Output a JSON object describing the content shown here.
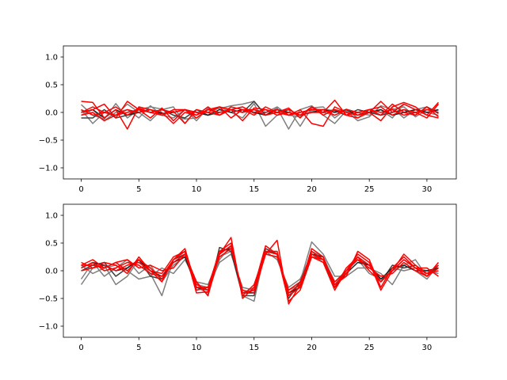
{
  "chart_data": [
    {
      "type": "line",
      "title": "",
      "xlabel": "",
      "ylabel": "",
      "xlim": [
        -1.55,
        32.55
      ],
      "ylim": [
        -1.2,
        1.2
      ],
      "xticks": [
        0,
        5,
        10,
        15,
        20,
        25,
        30
      ],
      "xtick_labels": [
        "0",
        "5",
        "10",
        "15",
        "20",
        "25",
        "30"
      ],
      "yticks": [
        -1.0,
        -0.5,
        0.0,
        0.5,
        1.0
      ],
      "ytick_labels": [
        "−1.0",
        "−0.5",
        "0.0",
        "0.5",
        "1.0"
      ],
      "grid": false,
      "x": [
        0,
        1,
        2,
        3,
        4,
        5,
        6,
        7,
        8,
        9,
        10,
        11,
        12,
        13,
        14,
        15,
        16,
        17,
        18,
        19,
        20,
        21,
        22,
        23,
        24,
        25,
        26,
        27,
        28,
        29,
        30,
        31
      ],
      "series": [
        {
          "color": "#7f7f7f",
          "values": [
            0.14,
            -0.05,
            -0.12,
            0.16,
            -0.1,
            0.05,
            0.1,
            0.06,
            -0.05,
            -0.12,
            -0.1,
            0.05,
            0.07,
            0.12,
            0.15,
            0.2,
            -0.05,
            0.08,
            -0.3,
            0.05,
            0.12,
            -0.05,
            -0.2,
            0.03,
            -0.15,
            -0.08,
            0.12,
            0.05,
            0.1,
            -0.08,
            0.05,
            0.04
          ]
        },
        {
          "color": "#7f7f7f",
          "values": [
            0.05,
            -0.2,
            0.0,
            -0.05,
            0.15,
            0.0,
            -0.15,
            0.05,
            0.1,
            -0.2,
            0.05,
            -0.05,
            0.1,
            0.0,
            -0.1,
            0.16,
            -0.25,
            -0.05,
            0.05,
            -0.25,
            0.08,
            0.1,
            -0.1,
            0.06,
            0.0,
            -0.05,
            0.05,
            -0.1,
            0.15,
            0.05,
            0.1,
            0.0
          ]
        },
        {
          "color": "#7f7f7f",
          "values": [
            -0.05,
            0.05,
            -0.15,
            0.0,
            0.05,
            -0.1,
            0.12,
            -0.05,
            -0.1,
            0.05,
            -0.15,
            0.08,
            -0.05,
            0.05,
            0.1,
            -0.02,
            0.0,
            0.1,
            -0.05,
            -0.08,
            0.03,
            0.0,
            -0.05,
            0.05,
            -0.1,
            0.05,
            -0.05,
            0.08,
            -0.1,
            0.05,
            0.0,
            -0.05
          ]
        },
        {
          "color": "#404040",
          "values": [
            -0.1,
            -0.1,
            0.05,
            -0.1,
            -0.05,
            0.05,
            0.0,
            0.05,
            -0.05,
            -0.1,
            0.05,
            -0.05,
            0.0,
            0.05,
            0.0,
            0.2,
            -0.05,
            0.05,
            -0.05,
            0.0,
            0.05,
            0.05,
            0.03,
            -0.05,
            0.05,
            0.0,
            -0.05,
            0.0,
            0.05,
            -0.05,
            0.1,
            -0.02
          ]
        },
        {
          "color": "#222222",
          "values": [
            0.0,
            0.05,
            -0.1,
            0.05,
            -0.05,
            0.0,
            0.05,
            -0.02,
            0.0,
            0.05,
            0.0,
            -0.05,
            0.05,
            0.0,
            0.05,
            0.0,
            -0.05,
            0.05,
            0.0,
            -0.05,
            0.0,
            0.05,
            0.0,
            0.05,
            -0.05,
            0.0,
            0.05,
            -0.05,
            0.0,
            0.05,
            0.0,
            0.05
          ]
        },
        {
          "color": "#ff0000",
          "values": [
            0.2,
            0.18,
            -0.1,
            0.05,
            -0.3,
            0.1,
            0.05,
            -0.05,
            0.02,
            -0.2,
            0.05,
            0.0,
            0.1,
            0.05,
            -0.15,
            0.08,
            0.05,
            -0.05,
            0.0,
            -0.05,
            0.1,
            0.0,
            0.22,
            -0.05,
            -0.1,
            0.0,
            0.2,
            0.0,
            0.15,
            0.05,
            -0.05,
            0.18
          ]
        },
        {
          "color": "#ff0000",
          "values": [
            0.0,
            0.05,
            0.15,
            -0.1,
            0.2,
            0.05,
            -0.1,
            0.08,
            -0.15,
            0.05,
            -0.05,
            0.1,
            -0.05,
            0.1,
            0.05,
            -0.05,
            0.1,
            0.0,
            0.08,
            -0.1,
            0.1,
            -0.05,
            0.05,
            0.0,
            -0.05,
            0.0,
            -0.15,
            0.1,
            0.18,
            0.1,
            -0.05,
            -0.1
          ]
        },
        {
          "color": "#ff0000",
          "values": [
            0.05,
            -0.05,
            0.0,
            0.1,
            -0.05,
            0.08,
            0.0,
            0.05,
            0.0,
            0.05,
            -0.1,
            0.05,
            0.0,
            0.05,
            0.1,
            0.0,
            0.05,
            0.0,
            -0.05,
            0.05,
            -0.2,
            -0.25,
            0.1,
            0.0,
            -0.05,
            0.05,
            -0.05,
            0.15,
            0.0,
            -0.05,
            0.1,
            -0.08
          ]
        },
        {
          "color": "#ff0000",
          "values": [
            -0.05,
            0.0,
            -0.15,
            -0.05,
            0.05,
            0.0,
            0.05,
            0.0,
            -0.2,
            0.0,
            -0.05,
            0.05,
            0.1,
            -0.1,
            0.05,
            0.05,
            0.0,
            0.05,
            -0.05,
            0.0,
            0.05,
            0.05,
            -0.05,
            0.05,
            0.0,
            0.05,
            0.1,
            -0.05,
            0.05,
            0.0,
            -0.1,
            0.15
          ]
        },
        {
          "color": "#ff0000",
          "values": [
            0.0,
            0.1,
            0.0,
            -0.05,
            0.0,
            0.05,
            0.0,
            -0.05,
            0.05,
            0.05,
            0.0,
            0.0,
            -0.05,
            0.05,
            0.0,
            0.05,
            -0.05,
            0.0,
            0.05,
            -0.05,
            0.0,
            0.0,
            0.05,
            -0.05,
            0.0,
            0.05,
            0.0,
            0.05,
            -0.05,
            0.0,
            0.05,
            0.0
          ]
        }
      ]
    },
    {
      "type": "line",
      "title": "",
      "xlabel": "",
      "ylabel": "",
      "xlim": [
        -1.55,
        32.55
      ],
      "ylim": [
        -1.2,
        1.2
      ],
      "xticks": [
        0,
        5,
        10,
        15,
        20,
        25,
        30
      ],
      "xtick_labels": [
        "0",
        "5",
        "10",
        "15",
        "20",
        "25",
        "30"
      ],
      "yticks": [
        -1.0,
        -0.5,
        0.0,
        0.5,
        1.0
      ],
      "ytick_labels": [
        "−1.0",
        "−0.5",
        "0.0",
        "0.5",
        "1.0"
      ],
      "grid": false,
      "x": [
        0,
        1,
        2,
        3,
        4,
        5,
        6,
        7,
        8,
        9,
        10,
        11,
        12,
        13,
        14,
        15,
        16,
        17,
        18,
        19,
        20,
        21,
        22,
        23,
        24,
        25,
        26,
        27,
        28,
        29,
        30,
        31
      ],
      "series": [
        {
          "color": "#7f7f7f",
          "values": [
            -0.25,
            0.05,
            0.1,
            -0.25,
            -0.1,
            0.2,
            -0.05,
            -0.45,
            0.2,
            0.3,
            -0.3,
            -0.4,
            0.2,
            0.45,
            -0.45,
            -0.55,
            0.4,
            0.3,
            -0.45,
            -0.2,
            0.52,
            0.3,
            -0.1,
            -0.1,
            0.05,
            0.05,
            -0.05,
            -0.25,
            0.1,
            0.2,
            -0.1,
            0.05
          ]
        },
        {
          "color": "#7f7f7f",
          "values": [
            -0.15,
            0.15,
            -0.1,
            0.05,
            0.2,
            -0.05,
            0.1,
            -0.2,
            0.1,
            0.25,
            -0.25,
            -0.3,
            0.15,
            0.3,
            -0.3,
            -0.35,
            0.3,
            0.25,
            -0.35,
            -0.25,
            0.35,
            0.25,
            -0.2,
            -0.05,
            0.25,
            0.1,
            -0.15,
            0.0,
            0.1,
            0.0,
            -0.15,
            0.1
          ]
        },
        {
          "color": "#7f7f7f",
          "values": [
            0.1,
            -0.05,
            0.05,
            0.1,
            0.0,
            -0.15,
            -0.1,
            0.05,
            -0.05,
            0.2,
            -0.2,
            -0.25,
            0.25,
            0.35,
            -0.4,
            -0.3,
            0.35,
            0.2,
            -0.3,
            -0.15,
            0.3,
            0.15,
            -0.25,
            0.0,
            0.2,
            -0.05,
            -0.15,
            0.05,
            0.0,
            0.05,
            0.0,
            -0.05
          ]
        },
        {
          "color": "#404040",
          "values": [
            0.0,
            0.1,
            0.15,
            -0.1,
            0.05,
            0.2,
            -0.1,
            -0.15,
            0.2,
            0.3,
            -0.2,
            -0.45,
            0.42,
            0.35,
            -0.45,
            -0.45,
            0.4,
            0.3,
            -0.5,
            -0.2,
            0.3,
            0.2,
            -0.3,
            0.0,
            0.2,
            0.1,
            -0.2,
            0.1,
            0.05,
            0.1,
            -0.05,
            0.05
          ]
        },
        {
          "color": "#222222",
          "values": [
            0.05,
            0.15,
            0.1,
            0.0,
            0.05,
            0.2,
            0.0,
            -0.1,
            0.15,
            0.25,
            -0.3,
            -0.35,
            0.35,
            0.4,
            -0.4,
            -0.4,
            0.35,
            0.3,
            -0.4,
            -0.3,
            0.3,
            0.25,
            -0.3,
            -0.05,
            0.15,
            0.1,
            -0.15,
            0.05,
            0.1,
            0.0,
            0.0,
            0.05
          ]
        },
        {
          "color": "#ff0000",
          "values": [
            0.15,
            0.05,
            0.15,
            0.1,
            -0.05,
            0.25,
            0.0,
            -0.2,
            0.2,
            0.35,
            -0.4,
            -0.38,
            0.3,
            0.6,
            -0.5,
            -0.3,
            0.45,
            0.3,
            -0.55,
            -0.35,
            0.25,
            0.15,
            -0.35,
            0.0,
            0.3,
            0.15,
            -0.35,
            0.0,
            0.3,
            0.1,
            -0.05,
            0.1
          ]
        },
        {
          "color": "#ff0000",
          "values": [
            0.1,
            0.2,
            0.05,
            0.15,
            0.2,
            0.05,
            0.1,
            0.0,
            0.05,
            0.3,
            -0.2,
            -0.45,
            0.3,
            0.45,
            -0.4,
            -0.35,
            0.3,
            0.55,
            -0.6,
            -0.25,
            0.35,
            0.2,
            -0.25,
            -0.1,
            0.35,
            0.2,
            -0.3,
            0.05,
            0.25,
            0.05,
            0.05,
            -0.1
          ]
        },
        {
          "color": "#ff0000",
          "values": [
            0.05,
            0.15,
            0.0,
            0.05,
            0.15,
            0.1,
            -0.05,
            -0.1,
            0.2,
            0.4,
            -0.3,
            -0.3,
            0.35,
            0.5,
            -0.45,
            -0.25,
            0.35,
            0.35,
            -0.45,
            -0.3,
            0.4,
            0.25,
            -0.3,
            0.05,
            0.25,
            0.0,
            -0.2,
            0.0,
            0.2,
            0.05,
            -0.1,
            0.05
          ]
        },
        {
          "color": "#ff0000",
          "values": [
            0.0,
            0.05,
            0.1,
            0.0,
            0.1,
            0.15,
            0.0,
            -0.05,
            0.25,
            0.35,
            -0.35,
            -0.3,
            0.25,
            0.4,
            -0.35,
            -0.4,
            0.3,
            0.25,
            -0.35,
            -0.2,
            0.25,
            0.2,
            -0.2,
            0.0,
            0.2,
            0.05,
            -0.1,
            -0.05,
            0.15,
            0.0,
            -0.1,
            0.15
          ]
        },
        {
          "color": "#ff0000",
          "values": [
            0.1,
            0.1,
            0.05,
            0.15,
            0.0,
            0.2,
            0.05,
            -0.15,
            0.15,
            0.3,
            -0.25,
            -0.35,
            0.3,
            0.45,
            -0.4,
            -0.35,
            0.35,
            0.3,
            -0.4,
            -0.25,
            0.3,
            0.2,
            -0.25,
            -0.05,
            0.25,
            0.1,
            -0.2,
            0.0,
            0.2,
            0.05,
            -0.05,
            0.0
          ]
        }
      ]
    }
  ]
}
